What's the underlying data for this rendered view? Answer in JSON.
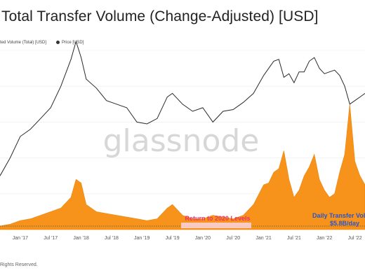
{
  "chart_data": {
    "type": "area",
    "title": "Total Transfer Volume (Change-Adjusted) [USD]",
    "legend": {
      "placement": "top-left",
      "items": [
        {
          "label": "ted Volume (Total) [USD]",
          "color": "#f7931a"
        },
        {
          "label": "Price [USD]",
          "color": "#333333"
        }
      ]
    },
    "watermark": "glassnode",
    "x_ticks": [
      "Jan '17",
      "Jul '17",
      "Jan '18",
      "Jul '18",
      "Jan '19",
      "Jul '19",
      "Jan '20",
      "Jul '20",
      "Jan '21",
      "Jul '21",
      "Jan '22",
      "Jul '22"
    ],
    "x_range": [
      "2016-09",
      "2022-09"
    ],
    "grid": true,
    "series": [
      {
        "name": "Volume",
        "style": "area",
        "color": "#f7931a",
        "x": [
          "2016-09",
          "2016-11",
          "2017-01",
          "2017-03",
          "2017-05",
          "2017-07",
          "2017-09",
          "2017-11",
          "2017-12",
          "2018-01",
          "2018-02",
          "2018-04",
          "2018-06",
          "2018-08",
          "2018-10",
          "2018-12",
          "2019-02",
          "2019-04",
          "2019-06",
          "2019-07",
          "2019-09",
          "2019-11",
          "2020-01",
          "2020-03",
          "2020-05",
          "2020-07",
          "2020-09",
          "2020-11",
          "2021-01",
          "2021-02",
          "2021-03",
          "2021-04",
          "2021-05",
          "2021-06",
          "2021-07",
          "2021-08",
          "2021-09",
          "2021-10",
          "2021-11",
          "2021-12",
          "2022-01",
          "2022-02",
          "2022-03",
          "2022-04",
          "2022-05",
          "2022-06",
          "2022-07",
          "2022-08",
          "2022-09"
        ],
        "values": [
          2,
          3,
          5,
          6,
          8,
          10,
          12,
          18,
          28,
          26,
          14,
          10,
          9,
          8,
          7,
          6,
          5,
          6,
          12,
          14,
          8,
          6,
          6,
          8,
          7,
          6,
          8,
          14,
          25,
          26,
          32,
          34,
          44,
          28,
          18,
          22,
          30,
          35,
          42,
          28,
          22,
          18,
          20,
          32,
          42,
          70,
          38,
          30,
          25
        ]
      },
      {
        "name": "Price",
        "style": "line",
        "color": "#333333",
        "x": [
          "2016-09",
          "2016-11",
          "2017-01",
          "2017-03",
          "2017-05",
          "2017-07",
          "2017-09",
          "2017-11",
          "2017-12",
          "2018-01",
          "2018-02",
          "2018-04",
          "2018-06",
          "2018-08",
          "2018-10",
          "2018-12",
          "2019-02",
          "2019-04",
          "2019-06",
          "2019-07",
          "2019-09",
          "2019-11",
          "2020-01",
          "2020-03",
          "2020-05",
          "2020-07",
          "2020-09",
          "2020-11",
          "2021-01",
          "2021-02",
          "2021-03",
          "2021-04",
          "2021-05",
          "2021-06",
          "2021-07",
          "2021-08",
          "2021-09",
          "2021-10",
          "2021-11",
          "2021-12",
          "2022-01",
          "2022-02",
          "2022-03",
          "2022-04",
          "2022-05",
          "2022-06",
          "2022-07",
          "2022-08",
          "2022-09"
        ],
        "values": [
          30,
          40,
          52,
          56,
          62,
          68,
          80,
          95,
          105,
          96,
          84,
          79,
          72,
          70,
          68,
          60,
          59,
          62,
          74,
          76,
          70,
          66,
          68,
          60,
          66,
          67,
          71,
          76,
          86,
          90,
          94,
          95,
          85,
          87,
          82,
          88,
          88,
          94,
          96,
          90,
          87,
          88,
          89,
          86,
          80,
          70,
          72,
          74,
          76
        ]
      }
    ],
    "annotations": [
      {
        "text": "Return to 2020 Levels",
        "x": "2020-02",
        "color": "#e8306e"
      },
      {
        "text": "Daily Transfer Volu",
        "x": "2022-04",
        "color": "#2b55c9"
      },
      {
        "text": "$5.8B/day",
        "x": "2022-04",
        "color": "#2b55c9"
      }
    ]
  },
  "footer": "Rights Reserved."
}
